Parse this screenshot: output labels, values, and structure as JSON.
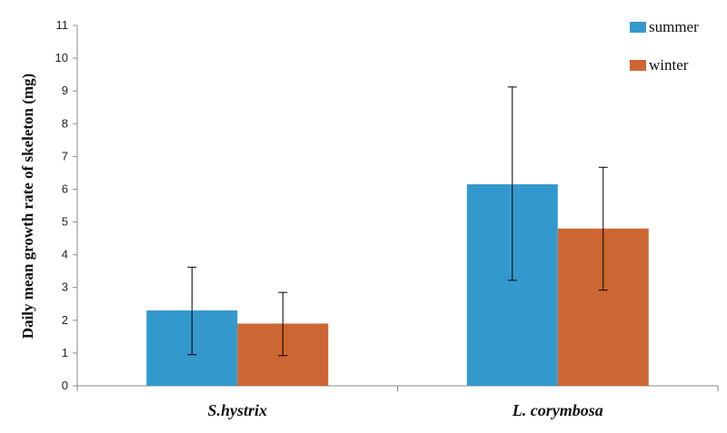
{
  "chart_data": {
    "type": "bar",
    "title": "",
    "xlabel": "",
    "ylabel": "Daily mean growth rate of skeleton (mg)",
    "ylim": [
      0,
      11
    ],
    "yticks": [
      "0",
      "1",
      "2",
      "3",
      "4",
      "5",
      "6",
      "7",
      "8",
      "9",
      "10",
      "11"
    ],
    "categories": [
      "S.hystrix",
      "L. corymbosa"
    ],
    "series": [
      {
        "name": "summer",
        "color": "#3399cc",
        "values": [
          2.3,
          6.15
        ],
        "error_low": [
          0.95,
          3.22
        ],
        "error_high": [
          3.62,
          9.12
        ]
      },
      {
        "name": "winter",
        "color": "#cc6633",
        "values": [
          1.9,
          4.8
        ],
        "error_low": [
          0.92,
          2.92
        ],
        "error_high": [
          2.85,
          6.67
        ]
      }
    ],
    "legend_position": "top-right",
    "grid": false
  }
}
